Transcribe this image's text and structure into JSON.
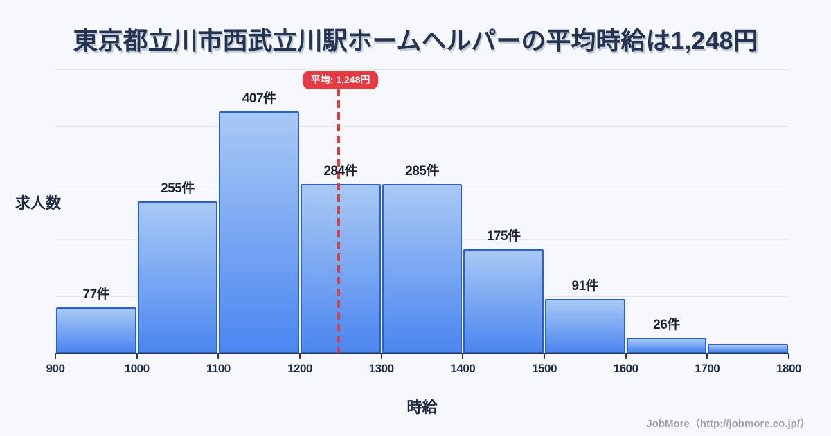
{
  "title": "東京都立川市西武立川駅ホームヘルパーの平均時給は1,248円",
  "chart_data": {
    "type": "bar",
    "subtype": "histogram",
    "title": "東京都立川市西武立川駅ホームヘルパーの平均時給は1,248円",
    "xlabel": "時給",
    "ylabel": "求人数",
    "bin_edges": [
      900,
      1000,
      1100,
      1200,
      1300,
      1400,
      1500,
      1600,
      1700,
      1800
    ],
    "values": [
      77,
      255,
      407,
      284,
      285,
      175,
      91,
      26,
      15
    ],
    "bar_labels": [
      "77件",
      "255件",
      "407件",
      "284件",
      "285件",
      "175件",
      "91件",
      "26件",
      ""
    ],
    "x_ticks": [
      "900",
      "1000",
      "1100",
      "1200",
      "1300",
      "1400",
      "1500",
      "1600",
      "1700",
      "1800"
    ],
    "xlim": [
      900,
      1800
    ],
    "ylim": [
      0,
      478
    ],
    "grid_divisions": 5,
    "grid": "horizontal-only",
    "legend": "none",
    "mean": {
      "value": 1248,
      "label": "平均: 1,248円"
    }
  },
  "footer": {
    "credit": "JobMore（http://jobmore.co.jp/）"
  },
  "colors": {
    "background": "#f7f8fb",
    "title_navy": "#243350",
    "bar_fill_top": "#a9c9f4",
    "bar_fill_bottom": "#4b86f0",
    "bar_border": "#2a5fd4",
    "mean_line_red": "#e23b3b",
    "badge_red": "#e53a44",
    "grid_line": "#e3e7f0",
    "axis": "#2f3542"
  }
}
